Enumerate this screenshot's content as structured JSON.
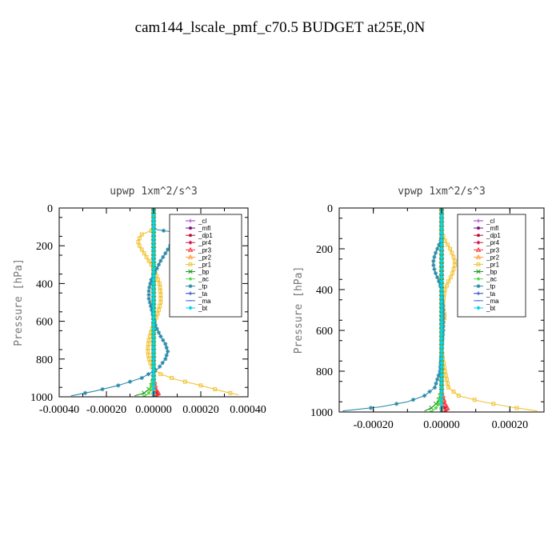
{
  "figure": {
    "title": "cam144_lscale_pmf_c70.5  BUDGET at25E,0N"
  },
  "chart_data": [
    {
      "type": "line",
      "title": "upwp   1xm^2/s^3",
      "xlabel": "",
      "ylabel": "Pressure [hPa]",
      "xlim": [
        -0.0004,
        0.0004
      ],
      "ylim": [
        1000,
        0
      ],
      "x_ticks": [
        -0.0004,
        -0.0002,
        0.0,
        0.0002,
        0.0004
      ],
      "x_tick_labels": [
        "-0.00040",
        "-0.00020",
        "0.00000",
        "0.00020",
        "0.00040"
      ],
      "y_ticks": [
        0,
        200,
        400,
        600,
        800,
        1000
      ],
      "y_tick_labels": [
        "0",
        "200",
        "400",
        "600",
        "800",
        "1000"
      ],
      "legend_position": "top-right",
      "series": [
        {
          "name": "_cl",
          "color": "#9b30d9",
          "marker": "plus",
          "points": [
            [
              0,
              0
            ],
            [
              0,
              100
            ],
            [
              0,
              200
            ],
            [
              0,
              300
            ],
            [
              0,
              400
            ],
            [
              0,
              500
            ],
            [
              0,
              600
            ],
            [
              0,
              700
            ],
            [
              0,
              800
            ],
            [
              0,
              900
            ],
            [
              0,
              1000
            ]
          ]
        },
        {
          "name": "_mfl",
          "color": "#7a0a8c",
          "marker": "dot",
          "points": [
            [
              0,
              0
            ],
            [
              0,
              100
            ],
            [
              0,
              200
            ],
            [
              0,
              300
            ],
            [
              0,
              400
            ],
            [
              0,
              500
            ],
            [
              0,
              600
            ],
            [
              0,
              700
            ],
            [
              0,
              800
            ],
            [
              0,
              900
            ],
            [
              0,
              1000
            ]
          ]
        },
        {
          "name": "_dp1",
          "color": "#c8003c",
          "marker": "dot",
          "points": [
            [
              0,
              0
            ],
            [
              0,
              100
            ],
            [
              0,
              200
            ],
            [
              0,
              300
            ],
            [
              0,
              400
            ],
            [
              0,
              500
            ],
            [
              0,
              600
            ],
            [
              0,
              700
            ],
            [
              0,
              800
            ],
            [
              0,
              900
            ],
            [
              0,
              960
            ],
            [
              2e-05,
              990
            ],
            [
              1e-05,
              1000
            ]
          ]
        },
        {
          "name": "_pr4",
          "color": "#d81a5a",
          "marker": "diamond",
          "points": [
            [
              0,
              0
            ],
            [
              0,
              500
            ],
            [
              0,
              900
            ],
            [
              5e-06,
              980
            ],
            [
              0,
              1000
            ]
          ]
        },
        {
          "name": "_pr3",
          "color": "#ff3030",
          "marker": "triangle",
          "points": [
            [
              0,
              0
            ],
            [
              0,
              500
            ],
            [
              0,
              900
            ],
            [
              1e-05,
              960
            ],
            [
              2.5e-05,
              990
            ],
            [
              1e-05,
              1000
            ]
          ]
        },
        {
          "name": "_pr2",
          "color": "#ff9a30",
          "marker": "triangle",
          "points": [
            [
              0,
              0
            ],
            [
              0,
              500
            ],
            [
              0,
              1000
            ]
          ]
        },
        {
          "name": "_pr1",
          "color": "#f2c230",
          "marker": "square",
          "points": [
            [
              0,
              0
            ],
            [
              0,
              100
            ],
            [
              -1e-05,
              120
            ],
            [
              -5e-05,
              140
            ],
            [
              -6e-05,
              160
            ],
            [
              -6.5e-05,
              180
            ],
            [
              -6e-05,
              200
            ],
            [
              -4.5e-05,
              230
            ],
            [
              -3e-05,
              260
            ],
            [
              -1e-05,
              300
            ],
            [
              1e-05,
              350
            ],
            [
              2.5e-05,
              400
            ],
            [
              3e-05,
              450
            ],
            [
              3e-05,
              500
            ],
            [
              2e-05,
              550
            ],
            [
              5e-06,
              600
            ],
            [
              -1e-05,
              650
            ],
            [
              -2e-05,
              700
            ],
            [
              -2.5e-05,
              750
            ],
            [
              -2e-05,
              800
            ],
            [
              -5e-06,
              850
            ],
            [
              3e-05,
              880
            ],
            [
              0.0001,
              910
            ],
            [
              0.0002,
              940
            ],
            [
              0.00029,
              970
            ],
            [
              0.00036,
              990
            ]
          ]
        },
        {
          "name": "_bp",
          "color": "#1a9a1a",
          "marker": "cross",
          "points": [
            [
              0,
              0
            ],
            [
              0,
              900
            ],
            [
              -1e-05,
              950
            ],
            [
              -4e-05,
              980
            ],
            [
              -8e-05,
              995
            ]
          ]
        },
        {
          "name": "_ac",
          "color": "#55dd44",
          "marker": "dot",
          "points": [
            [
              0,
              0
            ],
            [
              0,
              900
            ],
            [
              -2e-05,
              980
            ],
            [
              -4e-05,
              1000
            ]
          ]
        },
        {
          "name": "_tp",
          "color": "#2a8aa8",
          "marker": "star",
          "points": [
            [
              0,
              0
            ],
            [
              0,
              100
            ],
            [
              1.5e-05,
              115
            ],
            [
              7e-05,
              125
            ],
            [
              0.00012,
              140
            ],
            [
              0.00011,
              160
            ],
            [
              8e-05,
              180
            ],
            [
              6e-05,
              220
            ],
            [
              3e-05,
              280
            ],
            [
              1e-05,
              330
            ],
            [
              -1e-05,
              380
            ],
            [
              -2e-05,
              430
            ],
            [
              -2e-05,
              480
            ],
            [
              -1e-05,
              530
            ],
            [
              0,
              580
            ],
            [
              1e-05,
              630
            ],
            [
              3e-05,
              680
            ],
            [
              5e-05,
              720
            ],
            [
              6e-05,
              760
            ],
            [
              5e-05,
              800
            ],
            [
              2e-05,
              850
            ],
            [
              -5e-05,
              900
            ],
            [
              -0.00015,
              940
            ],
            [
              -0.00025,
              970
            ],
            [
              -0.00035,
              995
            ]
          ]
        },
        {
          "name": "_ta",
          "color": "#2040d0",
          "marker": "plus",
          "points": [
            [
              0,
              0
            ],
            [
              0,
              500
            ],
            [
              0,
              1000
            ]
          ]
        },
        {
          "name": "_ma",
          "color": "#3a6ad0",
          "marker": "dash",
          "points": [
            [
              0,
              0
            ],
            [
              0,
              500
            ],
            [
              0,
              1000
            ]
          ]
        },
        {
          "name": "_bt",
          "color": "#00d8e8",
          "marker": "diamond",
          "points": [
            [
              0,
              0
            ],
            [
              0,
              500
            ],
            [
              0,
              1000
            ]
          ]
        }
      ]
    },
    {
      "type": "line",
      "title": "vpwp   1xm^2/s^3",
      "xlabel": "",
      "ylabel": "Pressure [hPa]",
      "xlim": [
        -0.0003,
        0.0003
      ],
      "ylim": [
        1000,
        0
      ],
      "x_ticks": [
        -0.0002,
        0.0,
        0.0002
      ],
      "x_tick_labels": [
        "-0.00020",
        "0.00000",
        "0.00020"
      ],
      "y_ticks": [
        0,
        200,
        400,
        600,
        800,
        1000
      ],
      "y_tick_labels": [
        "0",
        "200",
        "400",
        "600",
        "800",
        "1000"
      ],
      "legend_position": "top-right",
      "series": [
        {
          "name": "_cl",
          "color": "#9b30d9",
          "marker": "plus",
          "points": [
            [
              0,
              0
            ],
            [
              0,
              100
            ],
            [
              0,
              200
            ],
            [
              0,
              300
            ],
            [
              0,
              400
            ],
            [
              0,
              500
            ],
            [
              0,
              600
            ],
            [
              0,
              700
            ],
            [
              0,
              800
            ],
            [
              0,
              900
            ],
            [
              0,
              1000
            ]
          ]
        },
        {
          "name": "_mfl",
          "color": "#7a0a8c",
          "marker": "dot",
          "points": [
            [
              0,
              0
            ],
            [
              0,
              100
            ],
            [
              0,
              200
            ],
            [
              0,
              300
            ],
            [
              0,
              400
            ],
            [
              0,
              500
            ],
            [
              0,
              600
            ],
            [
              0,
              700
            ],
            [
              0,
              800
            ],
            [
              0,
              900
            ],
            [
              0,
              1000
            ]
          ]
        },
        {
          "name": "_dp1",
          "color": "#c8003c",
          "marker": "dot",
          "points": [
            [
              0,
              0
            ],
            [
              0,
              100
            ],
            [
              0,
              200
            ],
            [
              0,
              300
            ],
            [
              0,
              400
            ],
            [
              0,
              500
            ],
            [
              0,
              600
            ],
            [
              0,
              700
            ],
            [
              0,
              800
            ],
            [
              0,
              900
            ],
            [
              0,
              960
            ],
            [
              1.5e-05,
              990
            ],
            [
              1e-05,
              1000
            ]
          ]
        },
        {
          "name": "_pr4",
          "color": "#d81a5a",
          "marker": "diamond",
          "points": [
            [
              0,
              0
            ],
            [
              0,
              500
            ],
            [
              0,
              900
            ],
            [
              5e-06,
              980
            ],
            [
              0,
              1000
            ]
          ]
        },
        {
          "name": "_pr3",
          "color": "#ff3030",
          "marker": "triangle",
          "points": [
            [
              0,
              0
            ],
            [
              0,
              500
            ],
            [
              0,
              900
            ],
            [
              1e-05,
              960
            ],
            [
              2e-05,
              990
            ],
            [
              1e-05,
              1000
            ]
          ]
        },
        {
          "name": "_pr2",
          "color": "#ff9a30",
          "marker": "triangle",
          "points": [
            [
              0,
              0
            ],
            [
              0,
              500
            ],
            [
              0,
              1000
            ]
          ]
        },
        {
          "name": "_pr1",
          "color": "#f2c230",
          "marker": "square",
          "points": [
            [
              0,
              0
            ],
            [
              0,
              120
            ],
            [
              1e-05,
              160
            ],
            [
              2.5e-05,
              200
            ],
            [
              3.5e-05,
              240
            ],
            [
              4e-05,
              270
            ],
            [
              3.5e-05,
              300
            ],
            [
              3e-05,
              330
            ],
            [
              2e-05,
              360
            ],
            [
              1e-05,
              400
            ],
            [
              5e-06,
              450
            ],
            [
              5e-06,
              500
            ],
            [
              1e-05,
              530
            ],
            [
              5e-06,
              560
            ],
            [
              0,
              600
            ],
            [
              0,
              700
            ],
            [
              1e-05,
              800
            ],
            [
              2e-05,
              880
            ],
            [
              5e-05,
              920
            ],
            [
              0.00012,
              950
            ],
            [
              0.0002,
              975
            ],
            [
              0.00028,
              995
            ]
          ]
        },
        {
          "name": "_bp",
          "color": "#1a9a1a",
          "marker": "cross",
          "points": [
            [
              0,
              0
            ],
            [
              0,
              900
            ],
            [
              -1e-05,
              950
            ],
            [
              -3e-05,
              980
            ],
            [
              -5e-05,
              995
            ]
          ]
        },
        {
          "name": "_ac",
          "color": "#55dd44",
          "marker": "dot",
          "points": [
            [
              0,
              0
            ],
            [
              0,
              900
            ],
            [
              -1e-05,
              970
            ],
            [
              -3e-05,
              1000
            ]
          ]
        },
        {
          "name": "_tp",
          "color": "#2a8aa8",
          "marker": "star",
          "points": [
            [
              0,
              0
            ],
            [
              0,
              150
            ],
            [
              -1e-05,
              190
            ],
            [
              -2e-05,
              230
            ],
            [
              -2.5e-05,
              270
            ],
            [
              -2e-05,
              310
            ],
            [
              -1e-05,
              350
            ],
            [
              0,
              400
            ],
            [
              5e-06,
              500
            ],
            [
              5e-06,
              600
            ],
            [
              0,
              700
            ],
            [
              -5e-06,
              800
            ],
            [
              -2e-05,
              880
            ],
            [
              -5e-05,
              920
            ],
            [
              -0.0001,
              950
            ],
            [
              -0.00018,
              975
            ],
            [
              -0.00029,
              995
            ]
          ]
        },
        {
          "name": "_ta",
          "color": "#2040d0",
          "marker": "plus",
          "points": [
            [
              0,
              0
            ],
            [
              0,
              500
            ],
            [
              0,
              1000
            ]
          ]
        },
        {
          "name": "_ma",
          "color": "#3a6ad0",
          "marker": "dash",
          "points": [
            [
              0,
              0
            ],
            [
              0,
              500
            ],
            [
              0,
              1000
            ]
          ]
        },
        {
          "name": "_bt",
          "color": "#00d8e8",
          "marker": "diamond",
          "points": [
            [
              0,
              0
            ],
            [
              0,
              500
            ],
            [
              0,
              1000
            ]
          ]
        }
      ]
    }
  ]
}
